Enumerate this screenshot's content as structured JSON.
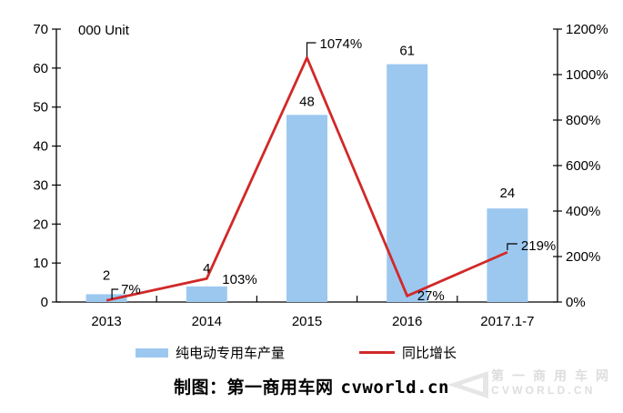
{
  "chart_data": {
    "type": "combo",
    "categories": [
      "2013",
      "2014",
      "2015",
      "2016",
      "2017.1-7"
    ],
    "series": [
      {
        "name": "纯电动专用车产量",
        "type": "bar",
        "axis": "left",
        "color": "#9CC8F0",
        "values": [
          2,
          4,
          48,
          61,
          24
        ],
        "labels": [
          "2",
          "4",
          "48",
          "61",
          "24"
        ]
      },
      {
        "name": "同比增长",
        "type": "line",
        "axis": "right",
        "color": "#D22828",
        "values": [
          7,
          103,
          1074,
          27,
          219
        ],
        "labels": [
          "7%",
          "103%",
          "1074%",
          "27%",
          "219%"
        ]
      }
    ],
    "left_axis": {
      "title": "000 Unit",
      "min": 0,
      "max": 70,
      "step": 10
    },
    "right_axis": {
      "min": 0,
      "max": 1200,
      "step": 200,
      "suffix": "%"
    },
    "legend_position": "bottom",
    "grid": false,
    "axis_color": "#000000",
    "text_color": "#000000"
  },
  "legend": {
    "bar_label": "纯电动专用车产量",
    "line_label": "同比增长"
  },
  "caption": {
    "prefix": "制图：第一商用车网",
    "domain": "cvworld.cn"
  },
  "watermark": {
    "line1": "第一商用车网",
    "line2": "CVWORLD.CN"
  }
}
